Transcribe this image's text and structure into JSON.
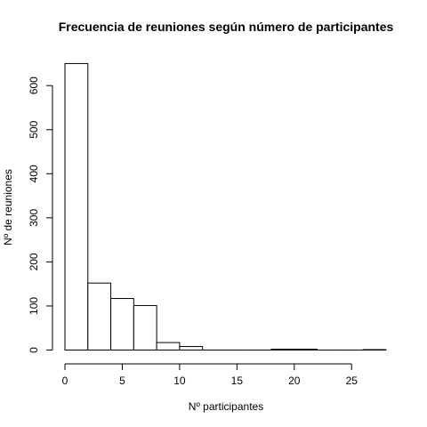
{
  "chart_data": {
    "type": "bar",
    "title": "Frecuencia de reuniones según número de participantes",
    "xlabel": "Nº participantes",
    "ylabel": "Nº de reuniones",
    "bins": [
      {
        "x0": 0,
        "x1": 2,
        "count": 650
      },
      {
        "x0": 2,
        "x1": 4,
        "count": 152
      },
      {
        "x0": 4,
        "x1": 6,
        "count": 117
      },
      {
        "x0": 6,
        "x1": 8,
        "count": 101
      },
      {
        "x0": 8,
        "x1": 10,
        "count": 17
      },
      {
        "x0": 10,
        "x1": 12,
        "count": 8
      },
      {
        "x0": 12,
        "x1": 14,
        "count": 0
      },
      {
        "x0": 14,
        "x1": 16,
        "count": 0
      },
      {
        "x0": 16,
        "x1": 18,
        "count": 0
      },
      {
        "x0": 18,
        "x1": 20,
        "count": 2
      },
      {
        "x0": 20,
        "x1": 22,
        "count": 2
      },
      {
        "x0": 22,
        "x1": 24,
        "count": 0
      },
      {
        "x0": 24,
        "x1": 26,
        "count": 0
      },
      {
        "x0": 26,
        "x1": 28,
        "count": 1
      }
    ],
    "xlim": [
      0,
      28
    ],
    "ylim": [
      0,
      650
    ],
    "xticks": [
      0,
      5,
      10,
      15,
      20,
      25
    ],
    "yticks": [
      0,
      100,
      200,
      300,
      400,
      500,
      600
    ],
    "grid": false,
    "bar_fill": "#ffffff",
    "bar_stroke": "#000000"
  }
}
